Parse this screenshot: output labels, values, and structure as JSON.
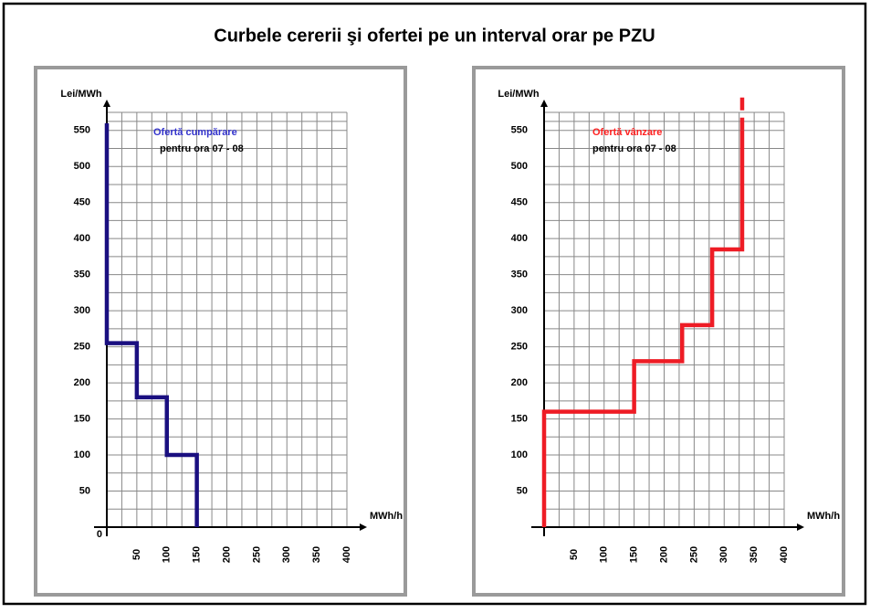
{
  "title": "Curbele cererii şi ofertei pe un interval orar pe PZU",
  "chart_data": [
    {
      "type": "line",
      "step": true,
      "y_label": "Lei/MWh",
      "x_label": "MWh/h",
      "annotations": [
        {
          "text": "Ofertă cumpărare",
          "color": "#3333cc"
        },
        {
          "text": "pentru ora 07 - 08",
          "color": "#000000"
        }
      ],
      "xlim": [
        0,
        400
      ],
      "ylim": [
        0,
        575
      ],
      "xticks": [
        50,
        100,
        150,
        200,
        250,
        300,
        350,
        400
      ],
      "yticks": [
        0,
        50,
        100,
        150,
        200,
        250,
        300,
        350,
        400,
        450,
        500,
        550
      ],
      "grid": true,
      "series": [
        {
          "color": "#1a0f80",
          "dashed": false,
          "x": [
            0,
            0,
            50,
            50,
            100,
            100,
            150,
            150
          ],
          "values": [
            560,
            255,
            255,
            180,
            180,
            100,
            100,
            0
          ]
        }
      ]
    },
    {
      "type": "line",
      "step": true,
      "y_label": "Lei/MWh",
      "x_label": "MWh/h",
      "annotations": [
        {
          "text": "Ofertă vânzare",
          "color": "#ff2020"
        },
        {
          "text": "pentru ora 07 - 08",
          "color": "#000000"
        }
      ],
      "xlim": [
        0,
        400
      ],
      "ylim": [
        0,
        575
      ],
      "xticks": [
        50,
        100,
        150,
        200,
        250,
        300,
        350,
        400
      ],
      "yticks": [
        50,
        100,
        150,
        200,
        250,
        300,
        350,
        400,
        450,
        500,
        550
      ],
      "grid": true,
      "series": [
        {
          "color": "#ee1c25",
          "dashed": false,
          "x": [
            0,
            0,
            150,
            150,
            230,
            230,
            280,
            280,
            330,
            330
          ],
          "values": [
            0,
            160,
            160,
            230,
            230,
            280,
            280,
            385,
            385,
            550
          ]
        },
        {
          "color": "#ee1c25",
          "dashed": true,
          "x": [
            330,
            330
          ],
          "values": [
            550,
            600
          ]
        }
      ]
    }
  ]
}
